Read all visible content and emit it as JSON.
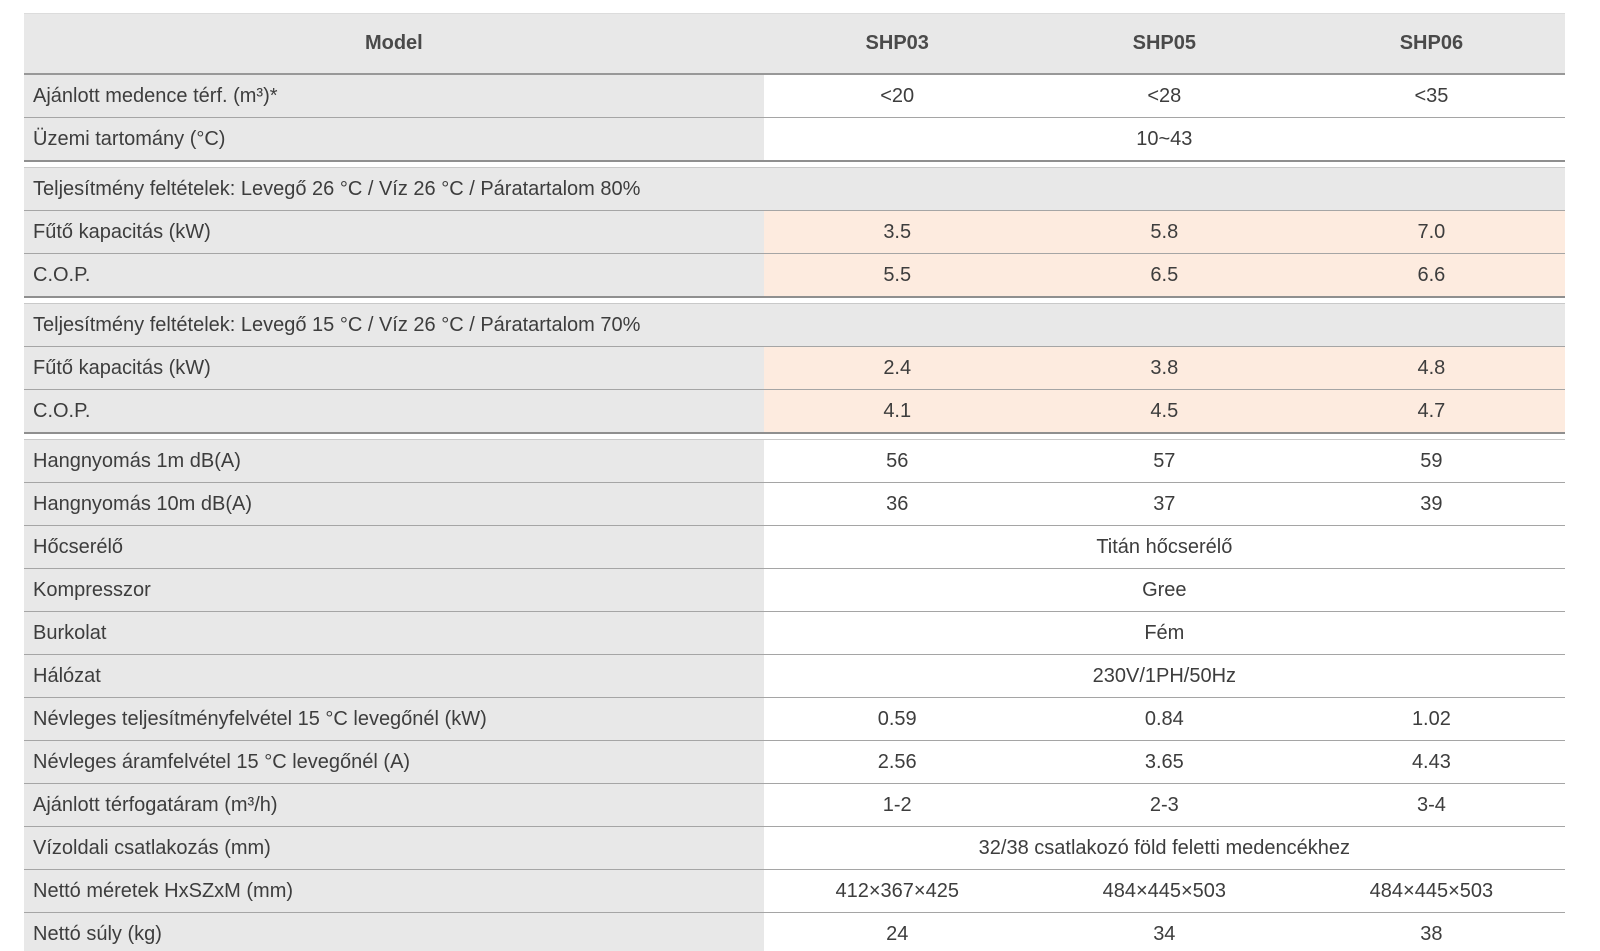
{
  "table": {
    "header": {
      "model_label": "Model",
      "columns": [
        "SHP03",
        "SHP05",
        "SHP06"
      ]
    },
    "colors": {
      "highlight_bg": "#fdebdf",
      "cell_gray_bg": "#e8e8e8",
      "row_border": "#a5a5a5",
      "text": "#3d3d3d"
    },
    "sections": [
      {
        "rows": [
          {
            "label": "Ajánlott medence térf. (m³)*",
            "values": [
              "<20",
              "<28",
              "<35"
            ],
            "highlight": false
          },
          {
            "label": "Üzemi tartomány (°C)",
            "merged": "10~43"
          }
        ]
      },
      {
        "section_header": "Teljesítmény feltételek: Levegő 26 °C / Víz 26 °C / Páratartalom 80%",
        "rows": [
          {
            "label": "Fűtő kapacitás (kW)",
            "values": [
              "3.5",
              "5.8",
              "7.0"
            ],
            "highlight": true
          },
          {
            "label": "C.O.P.",
            "values": [
              "5.5",
              "6.5",
              "6.6"
            ],
            "highlight": true
          }
        ]
      },
      {
        "section_header": "Teljesítmény feltételek: Levegő 15 °C / Víz 26 °C / Páratartalom 70%",
        "rows": [
          {
            "label": "Fűtő kapacitás (kW)",
            "values": [
              "2.4",
              "3.8",
              "4.8"
            ],
            "highlight": true
          },
          {
            "label": "C.O.P.",
            "values": [
              "4.1",
              "4.5",
              "4.7"
            ],
            "highlight": true
          }
        ]
      },
      {
        "rows": [
          {
            "label": "Hangnyomás 1m dB(A)",
            "values": [
              "56",
              "57",
              "59"
            ],
            "highlight": false
          },
          {
            "label": "Hangnyomás 10m dB(A)",
            "values": [
              "36",
              "37",
              "39"
            ],
            "highlight": false
          },
          {
            "label": "Hőcserélő",
            "merged": "Titán hőcserélő"
          },
          {
            "label": "Kompresszor",
            "merged": "Gree"
          },
          {
            "label": "Burkolat",
            "merged": "Fém"
          },
          {
            "label": "Hálózat",
            "merged": "230V/1PH/50Hz"
          },
          {
            "label": "Névleges teljesítményfelvétel 15 °C levegőnél (kW)",
            "values": [
              "0.59",
              "0.84",
              "1.02"
            ],
            "highlight": false
          },
          {
            "label": "Névleges áramfelvétel 15 °C levegőnél (A)",
            "values": [
              "2.56",
              "3.65",
              "4.43"
            ],
            "highlight": false
          },
          {
            "label": "Ajánlott térfogatáram (m³/h)",
            "values": [
              "1-2",
              "2-3",
              "3-4"
            ],
            "highlight": false
          },
          {
            "label": "Vízoldali csatlakozás (mm)",
            "merged": "32/38 csatlakozó föld feletti medencékhez"
          },
          {
            "label": "Nettó méretek HxSZxM (mm)",
            "values": [
              "412×367×425",
              "484×445×503",
              "484×445×503"
            ],
            "highlight": false
          },
          {
            "label": "Nettó súly (kg)",
            "values": [
              "24",
              "34",
              "38"
            ],
            "highlight": false
          }
        ]
      }
    ]
  }
}
